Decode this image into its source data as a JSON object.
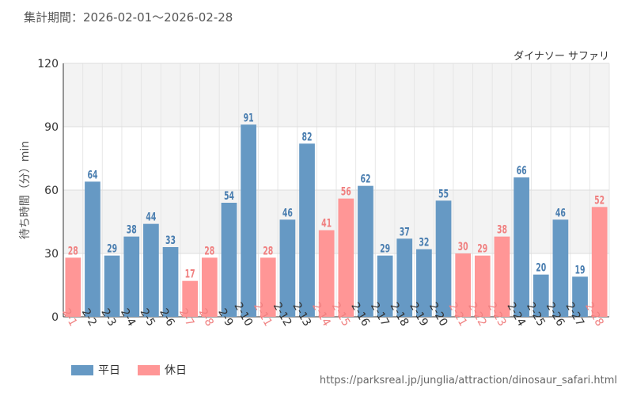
{
  "header": {
    "period": "集計期間：2026-02-01～2026-02-28",
    "attraction": "ダイナソー サファリ"
  },
  "legend": {
    "weekday_label": "平日",
    "holiday_label": "休日"
  },
  "footer": {
    "source": "https://parksreal.jp/junglia/attraction/dinosaur_safari.html"
  },
  "colors": {
    "weekday": "#6699c4",
    "holiday": "#ff9696",
    "weekday_text": "#4a7eb0",
    "holiday_text": "#f08080"
  },
  "chart_data": {
    "type": "bar",
    "title": "",
    "xlabel": "",
    "ylabel": "待ち時間（分）min",
    "ylim": [
      0,
      120
    ],
    "yticks": [
      0,
      30,
      60,
      90,
      120
    ],
    "categories": [
      "2-1",
      "2-2",
      "2-3",
      "2-4",
      "2-5",
      "2-6",
      "2-7",
      "2-8",
      "2-9",
      "2-10",
      "2-11",
      "2-12",
      "2-13",
      "2-14",
      "2-15",
      "2-16",
      "2-17",
      "2-18",
      "2-19",
      "2-20",
      "2-21",
      "2-22",
      "2-23",
      "2-24",
      "2-25",
      "2-26",
      "2-27",
      "2-28"
    ],
    "values": [
      28,
      64,
      29,
      38,
      44,
      33,
      17,
      28,
      54,
      91,
      28,
      46,
      82,
      41,
      56,
      62,
      29,
      37,
      32,
      55,
      30,
      29,
      38,
      66,
      20,
      46,
      19,
      52
    ],
    "day_type": [
      "holiday",
      "weekday",
      "weekday",
      "weekday",
      "weekday",
      "weekday",
      "holiday",
      "holiday",
      "weekday",
      "weekday",
      "holiday",
      "weekday",
      "weekday",
      "holiday",
      "holiday",
      "weekday",
      "weekday",
      "weekday",
      "weekday",
      "weekday",
      "holiday",
      "holiday",
      "holiday",
      "weekday",
      "weekday",
      "weekday",
      "weekday",
      "holiday"
    ],
    "series": [
      {
        "name": "平日",
        "key": "weekday"
      },
      {
        "name": "休日",
        "key": "holiday"
      }
    ],
    "legend_position": "bottom-left",
    "grid": true
  }
}
